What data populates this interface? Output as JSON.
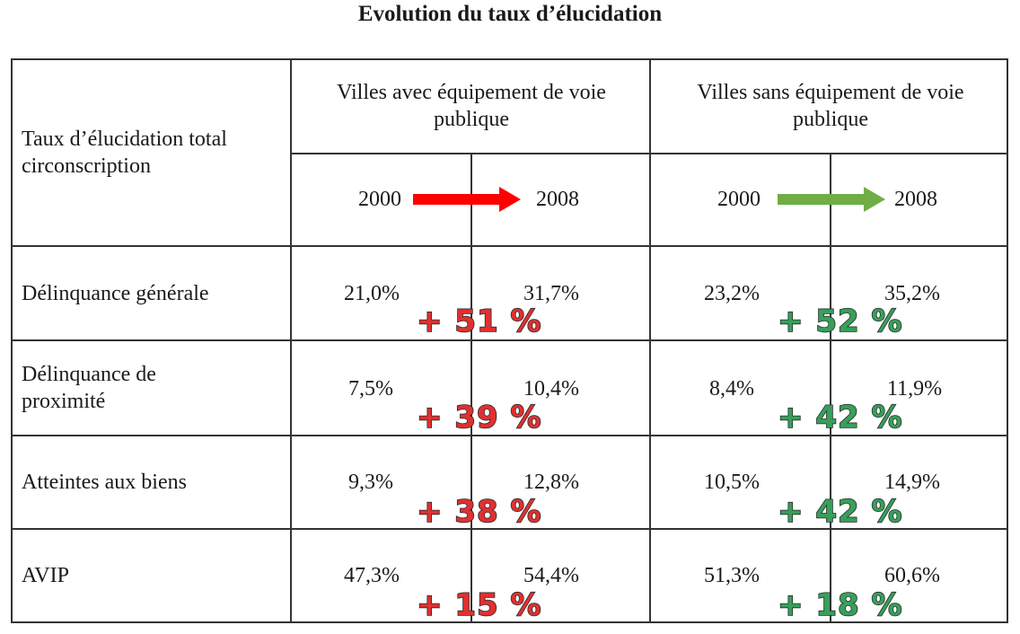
{
  "title": "Evolution du taux d’élucidation",
  "header": {
    "row_label": "Taux d’élucidation total circonscription",
    "group_with": "Villes avec équipement de voie publique",
    "group_without": "Villes sans équipement de voie publique",
    "year_from": "2000",
    "year_to": "2008",
    "arrow_with_color": "#ff0000",
    "arrow_without_color": "#70ad47"
  },
  "rows": [
    {
      "label": "Délinquance générale",
      "with_2000": "21,0%",
      "with_2008": "31,7%",
      "with_change": "+ 51 %",
      "without_2000": "23,2%",
      "without_2008": "35,2%",
      "without_change": "+ 52 %"
    },
    {
      "label": "Délinquance de proximité",
      "with_2000": "7,5%",
      "with_2008": "10,4%",
      "with_change": "+ 39 %",
      "without_2000": "8,4%",
      "without_2008": "11,9%",
      "without_change": "+ 42 %"
    },
    {
      "label": "Atteintes aux biens",
      "with_2000": "9,3%",
      "with_2008": "12,8%",
      "with_change": "+ 38 %",
      "without_2000": "10,5%",
      "without_2008": "14,9%",
      "without_change": "+ 42 %"
    },
    {
      "label": "AVIP",
      "with_2000": "47,3%",
      "with_2008": "54,4%",
      "with_change": "+ 15 %",
      "without_2000": "51,3%",
      "without_2008": "60,6%",
      "without_change": "+ 18 %"
    }
  ]
}
